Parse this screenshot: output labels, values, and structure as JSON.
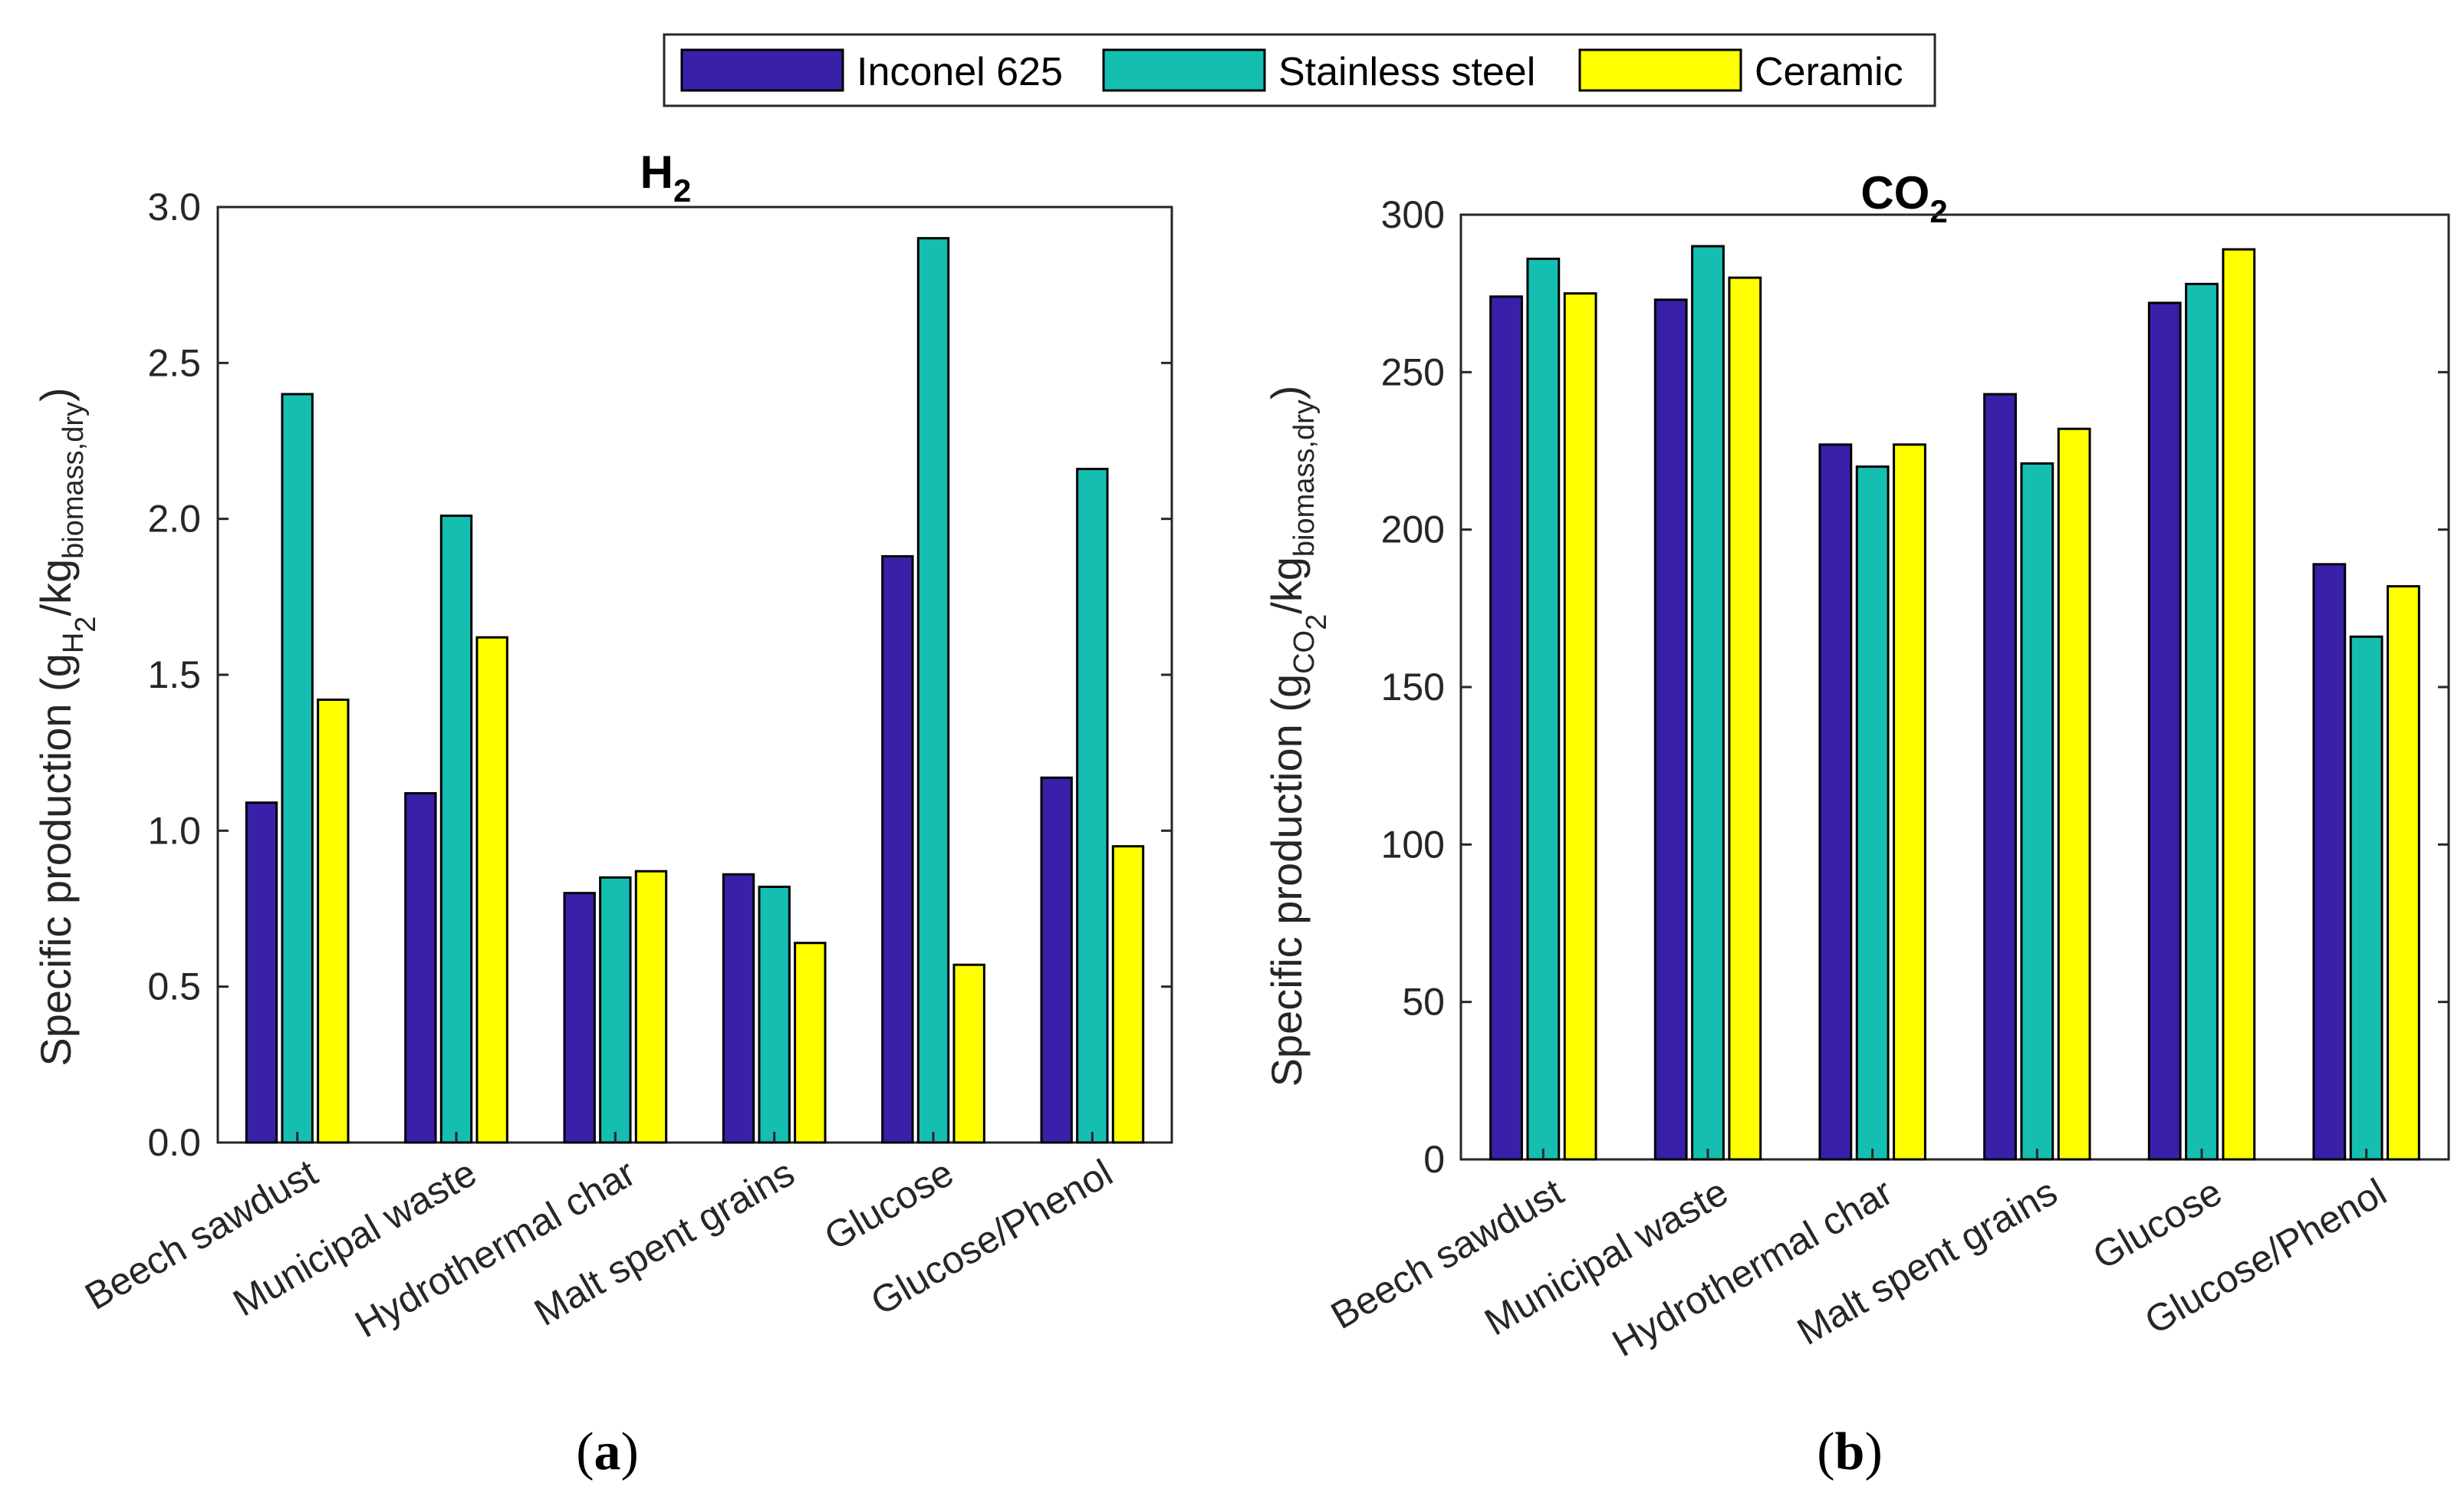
{
  "legend": [
    {
      "label": "Inconel 625",
      "color": "#3a1fa8"
    },
    {
      "label": "Stainless steel",
      "color": "#14bfb2"
    },
    {
      "label": "Ceramic",
      "color": "#ffff00"
    }
  ],
  "chart_data": [
    {
      "type": "bar",
      "panel": "a",
      "title_main": "H",
      "title_sub": "2",
      "caption_letter": "a",
      "ylabel": "Specific production (g",
      "ylabel_parts": {
        "sub1": "H",
        "subsub1": "2",
        "mid": "/kg",
        "sub2": "biomass,dry",
        "end": ")"
      },
      "ylim": [
        0,
        3.0
      ],
      "yticks": [
        0,
        0.5,
        1.0,
        1.5,
        2.0,
        2.5,
        3.0
      ],
      "ytick_labels": [
        "0.0",
        "0.5",
        "1.0",
        "1.5",
        "2.0",
        "2.5",
        "3.0"
      ],
      "categories": [
        "Beech sawdust",
        "Municipal waste",
        "Hydrothermal char",
        "Malt spent grains",
        "Glucose",
        "Glucose/Phenol"
      ],
      "series": [
        {
          "name": "Inconel 625",
          "values": [
            1.09,
            1.12,
            0.8,
            0.86,
            1.88,
            1.17
          ]
        },
        {
          "name": "Stainless steel",
          "values": [
            2.4,
            2.01,
            0.85,
            0.82,
            2.9,
            2.16
          ]
        },
        {
          "name": "Ceramic",
          "values": [
            1.42,
            1.62,
            0.87,
            0.64,
            0.57,
            0.95
          ]
        }
      ]
    },
    {
      "type": "bar",
      "panel": "b",
      "title_main": "CO",
      "title_sub": "2",
      "caption_letter": "b",
      "ylabel": "Specific production (g",
      "ylabel_parts": {
        "sub1": "CO",
        "subsub1": "2",
        "mid": "/kg",
        "sub2": "biomass,dry",
        "end": ")"
      },
      "ylim": [
        0,
        300
      ],
      "yticks": [
        0,
        50,
        100,
        150,
        200,
        250,
        300
      ],
      "ytick_labels": [
        "0",
        "50",
        "100",
        "150",
        "200",
        "250",
        "300"
      ],
      "categories": [
        "Beech sawdust",
        "Municipal waste",
        "Hydrothermal char",
        "Malt spent grains",
        "Glucose",
        "Glucose/Phenol"
      ],
      "series": [
        {
          "name": "Inconel 625",
          "values": [
            274,
            273,
            227,
            243,
            272,
            189
          ]
        },
        {
          "name": "Stainless steel",
          "values": [
            286,
            290,
            220,
            221,
            278,
            166
          ]
        },
        {
          "name": "Ceramic",
          "values": [
            275,
            280,
            227,
            232,
            289,
            182
          ]
        }
      ]
    }
  ]
}
